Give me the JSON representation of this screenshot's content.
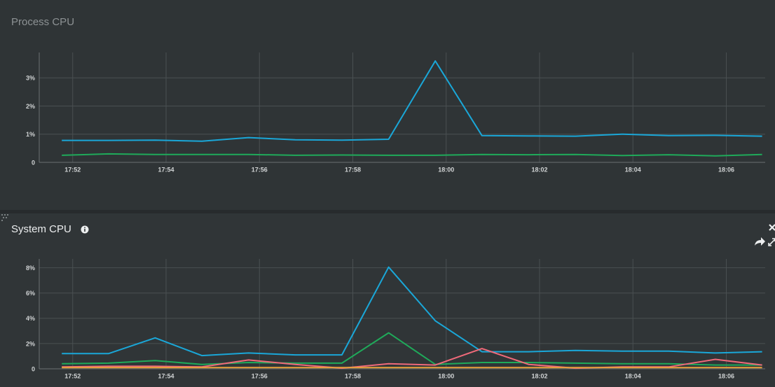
{
  "chart_data": [
    {
      "type": "line",
      "title": "Process CPU",
      "x": [
        "17:51:46",
        "17:52:46",
        "17:53:46",
        "17:54:46",
        "17:55:46",
        "17:56:46",
        "17:57:46",
        "17:58:46",
        "17:59:46",
        "18:00:46",
        "18:01:46",
        "18:02:46",
        "18:03:46",
        "18:04:46",
        "18:05:46",
        "18:06:46"
      ],
      "xlim": [
        "17:51:17",
        "18:06:50"
      ],
      "xticks": [
        "17:52",
        "17:54",
        "17:56",
        "17:58",
        "18:00",
        "18:02",
        "18:04",
        "18:06"
      ],
      "ylim": [
        0,
        3.9
      ],
      "yticks": [
        0,
        {
          "value": 1,
          "label": "1%"
        },
        {
          "value": 2,
          "label": "2%"
        },
        {
          "value": 3,
          "label": "3%"
        }
      ],
      "grid": true,
      "series": [
        {
          "color": "#1aa7d8",
          "values": [
            0.78,
            0.78,
            0.79,
            0.75,
            0.88,
            0.8,
            0.79,
            0.82,
            3.6,
            0.95,
            0.94,
            0.93,
            1.0,
            0.95,
            0.96,
            0.93
          ]
        },
        {
          "color": "#1faa5a",
          "values": [
            0.25,
            0.3,
            0.28,
            0.28,
            0.28,
            0.25,
            0.26,
            0.25,
            0.25,
            0.28,
            0.27,
            0.28,
            0.24,
            0.27,
            0.23,
            0.28
          ]
        }
      ]
    },
    {
      "type": "line",
      "title": "System CPU",
      "x": [
        "17:51:46",
        "17:52:46",
        "17:53:46",
        "17:54:46",
        "17:55:46",
        "17:56:46",
        "17:57:46",
        "17:58:46",
        "17:59:46",
        "18:00:46",
        "18:01:46",
        "18:02:46",
        "18:03:46",
        "18:04:46",
        "18:05:46",
        "18:06:46"
      ],
      "xlim": [
        "17:51:17",
        "18:06:50"
      ],
      "xticks": [
        "17:52",
        "17:54",
        "17:56",
        "17:58",
        "18:00",
        "18:02",
        "18:04",
        "18:06"
      ],
      "ylim": [
        0,
        8.7
      ],
      "yticks": [
        0,
        {
          "value": 2,
          "label": "2%"
        },
        {
          "value": 4,
          "label": "4%"
        },
        {
          "value": 6,
          "label": "6%"
        },
        {
          "value": 8,
          "label": "8%"
        }
      ],
      "grid": true,
      "series": [
        {
          "color": "#1aa7d8",
          "values": [
            1.2,
            1.2,
            2.45,
            1.05,
            1.25,
            1.1,
            1.1,
            8.05,
            3.8,
            1.35,
            1.35,
            1.45,
            1.4,
            1.4,
            1.25,
            1.35
          ]
        },
        {
          "color": "#1faa5a",
          "values": [
            0.4,
            0.45,
            0.65,
            0.35,
            0.5,
            0.45,
            0.45,
            2.85,
            0.35,
            0.5,
            0.5,
            0.45,
            0.4,
            0.4,
            0.3,
            0.3
          ]
        },
        {
          "color": "#f06a7a",
          "values": [
            0.15,
            0.2,
            0.2,
            0.15,
            0.7,
            0.35,
            0.05,
            0.4,
            0.3,
            1.6,
            0.35,
            0.05,
            0.15,
            0.15,
            0.75,
            0.3
          ]
        },
        {
          "color": "#e8a23a",
          "values": [
            0.1,
            0.1,
            0.1,
            0.1,
            0.1,
            0.1,
            0.1,
            0.1,
            0.1,
            0.1,
            0.1,
            0.1,
            0.1,
            0.1,
            0.1,
            0.1
          ]
        }
      ]
    }
  ]
}
